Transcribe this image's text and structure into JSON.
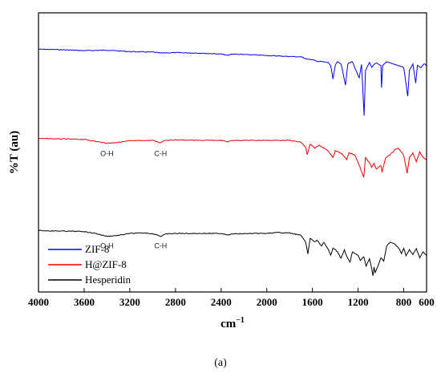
{
  "figure_label": "(a)",
  "chart_data": {
    "type": "line",
    "xlabel_base": "cm",
    "xlabel_sup": "−1",
    "ylabel": "%T (au)",
    "xlim": [
      4000,
      600
    ],
    "x_reversed": true,
    "xticks": [
      4000,
      3600,
      3200,
      2800,
      2400,
      2000,
      1600,
      1200,
      800,
      600
    ],
    "grid": false,
    "legend_position": "bottom-left",
    "series": [
      {
        "name": "ZIF-8",
        "color": "#0000ee",
        "offset": 0.88,
        "points": [
          [
            4000,
            0.03
          ],
          [
            3800,
            0.035
          ],
          [
            3600,
            0.045
          ],
          [
            3400,
            0.04
          ],
          [
            3200,
            0.055
          ],
          [
            3000,
            0.06
          ],
          [
            2930,
            0.07
          ],
          [
            2800,
            0.065
          ],
          [
            2600,
            0.07
          ],
          [
            2400,
            0.08
          ],
          [
            2340,
            0.095
          ],
          [
            2310,
            0.08
          ],
          [
            2200,
            0.085
          ],
          [
            2000,
            0.095
          ],
          [
            1900,
            0.1
          ],
          [
            1800,
            0.105
          ],
          [
            1700,
            0.11
          ],
          [
            1650,
            0.13
          ],
          [
            1600,
            0.14
          ],
          [
            1560,
            0.155
          ],
          [
            1510,
            0.16
          ],
          [
            1460,
            0.17
          ],
          [
            1440,
            0.2
          ],
          [
            1420,
            0.34
          ],
          [
            1400,
            0.2
          ],
          [
            1380,
            0.16
          ],
          [
            1350,
            0.18
          ],
          [
            1310,
            0.4
          ],
          [
            1290,
            0.18
          ],
          [
            1250,
            0.16
          ],
          [
            1190,
            0.33
          ],
          [
            1170,
            0.19
          ],
          [
            1147,
            0.72
          ],
          [
            1135,
            0.25
          ],
          [
            1100,
            0.17
          ],
          [
            1080,
            0.22
          ],
          [
            1060,
            0.19
          ],
          [
            1040,
            0.17
          ],
          [
            1000,
            0.2
          ],
          [
            995,
            0.43
          ],
          [
            985,
            0.2
          ],
          [
            950,
            0.16
          ],
          [
            900,
            0.18
          ],
          [
            850,
            0.2
          ],
          [
            800,
            0.22
          ],
          [
            765,
            0.52
          ],
          [
            750,
            0.25
          ],
          [
            720,
            0.18
          ],
          [
            695,
            0.38
          ],
          [
            680,
            0.2
          ],
          [
            650,
            0.22
          ],
          [
            620,
            0.18
          ],
          [
            600,
            0.2
          ]
        ]
      },
      {
        "name": "H@ZIF-8",
        "color": "#ee0000",
        "offset": 0.55,
        "points": [
          [
            4000,
            0.0
          ],
          [
            3800,
            0.005
          ],
          [
            3600,
            0.01
          ],
          [
            3500,
            0.03
          ],
          [
            3400,
            0.05
          ],
          [
            3300,
            0.04
          ],
          [
            3200,
            0.025
          ],
          [
            3000,
            0.02
          ],
          [
            2930,
            0.045
          ],
          [
            2900,
            0.02
          ],
          [
            2800,
            0.015
          ],
          [
            2600,
            0.02
          ],
          [
            2400,
            0.02
          ],
          [
            2340,
            0.035
          ],
          [
            2300,
            0.02
          ],
          [
            2000,
            0.02
          ],
          [
            1800,
            0.02
          ],
          [
            1700,
            0.04
          ],
          [
            1660,
            0.09
          ],
          [
            1645,
            0.17
          ],
          [
            1620,
            0.06
          ],
          [
            1580,
            0.1
          ],
          [
            1540,
            0.07
          ],
          [
            1500,
            0.1
          ],
          [
            1460,
            0.13
          ],
          [
            1420,
            0.2
          ],
          [
            1400,
            0.13
          ],
          [
            1350,
            0.15
          ],
          [
            1300,
            0.22
          ],
          [
            1280,
            0.15
          ],
          [
            1230,
            0.17
          ],
          [
            1200,
            0.25
          ],
          [
            1150,
            0.4
          ],
          [
            1135,
            0.2
          ],
          [
            1100,
            0.25
          ],
          [
            1080,
            0.3
          ],
          [
            1060,
            0.26
          ],
          [
            1040,
            0.32
          ],
          [
            1000,
            0.28
          ],
          [
            990,
            0.35
          ],
          [
            960,
            0.2
          ],
          [
            920,
            0.17
          ],
          [
            880,
            0.12
          ],
          [
            850,
            0.1
          ],
          [
            820,
            0.14
          ],
          [
            800,
            0.18
          ],
          [
            770,
            0.36
          ],
          [
            750,
            0.2
          ],
          [
            720,
            0.15
          ],
          [
            690,
            0.24
          ],
          [
            660,
            0.14
          ],
          [
            630,
            0.2
          ],
          [
            600,
            0.22
          ]
        ]
      },
      {
        "name": "Hesperidin",
        "color": "#000000",
        "offset": 0.22,
        "points": [
          [
            4000,
            0.0
          ],
          [
            3800,
            0.005
          ],
          [
            3600,
            0.01
          ],
          [
            3500,
            0.03
          ],
          [
            3400,
            0.06
          ],
          [
            3300,
            0.05
          ],
          [
            3200,
            0.03
          ],
          [
            3050,
            0.025
          ],
          [
            2970,
            0.04
          ],
          [
            2930,
            0.06
          ],
          [
            2880,
            0.035
          ],
          [
            2800,
            0.03
          ],
          [
            2600,
            0.03
          ],
          [
            2400,
            0.03
          ],
          [
            2330,
            0.045
          ],
          [
            2300,
            0.035
          ],
          [
            2100,
            0.03
          ],
          [
            2000,
            0.03
          ],
          [
            1900,
            0.02
          ],
          [
            1800,
            0.025
          ],
          [
            1700,
            0.05
          ],
          [
            1660,
            0.12
          ],
          [
            1640,
            0.24
          ],
          [
            1620,
            0.08
          ],
          [
            1600,
            0.1
          ],
          [
            1580,
            0.12
          ],
          [
            1560,
            0.1
          ],
          [
            1520,
            0.16
          ],
          [
            1500,
            0.12
          ],
          [
            1460,
            0.2
          ],
          [
            1440,
            0.26
          ],
          [
            1420,
            0.18
          ],
          [
            1380,
            0.22
          ],
          [
            1350,
            0.29
          ],
          [
            1320,
            0.2
          ],
          [
            1300,
            0.27
          ],
          [
            1270,
            0.33
          ],
          [
            1250,
            0.22
          ],
          [
            1200,
            0.26
          ],
          [
            1180,
            0.31
          ],
          [
            1150,
            0.27
          ],
          [
            1130,
            0.37
          ],
          [
            1100,
            0.29
          ],
          [
            1080,
            0.4
          ],
          [
            1070,
            0.47
          ],
          [
            1060,
            0.38
          ],
          [
            1050,
            0.44
          ],
          [
            1020,
            0.35
          ],
          [
            1000,
            0.28
          ],
          [
            975,
            0.32
          ],
          [
            950,
            0.16
          ],
          [
            920,
            0.12
          ],
          [
            880,
            0.14
          ],
          [
            840,
            0.19
          ],
          [
            820,
            0.24
          ],
          [
            800,
            0.18
          ],
          [
            780,
            0.26
          ],
          [
            750,
            0.2
          ],
          [
            720,
            0.25
          ],
          [
            690,
            0.19
          ],
          [
            660,
            0.28
          ],
          [
            630,
            0.22
          ],
          [
            600,
            0.26
          ]
        ]
      }
    ],
    "annotations": [
      {
        "text": "O-H",
        "x": 3400,
        "series": "H@ZIF-8"
      },
      {
        "text": "C-H",
        "x": 2930,
        "series": "H@ZIF-8"
      },
      {
        "text": "O-H",
        "x": 3400,
        "series": "Hesperidin"
      },
      {
        "text": "C-H",
        "x": 2930,
        "series": "Hesperidin"
      }
    ]
  }
}
